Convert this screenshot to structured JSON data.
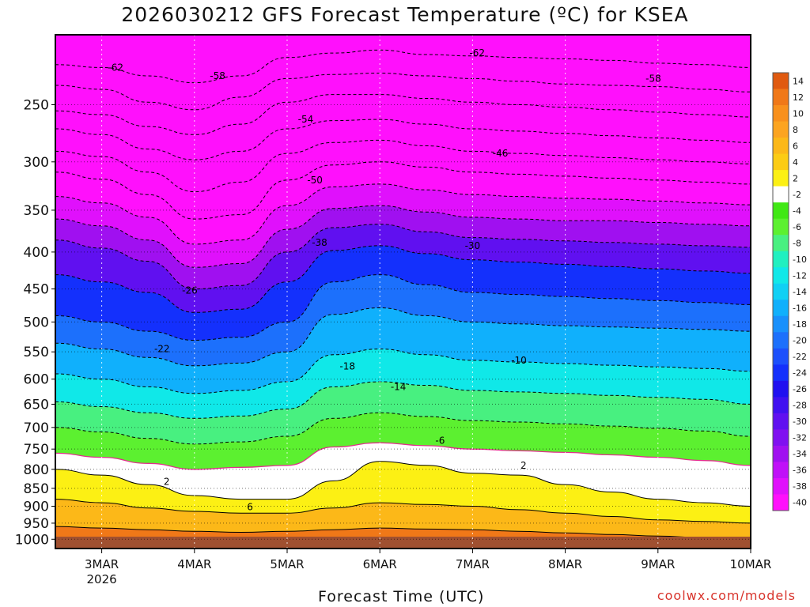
{
  "title": "2026030212 GFS Forecast Temperature (ºC) for KSEA",
  "credit": "coolwx.com/models",
  "chart_data": {
    "type": "heatmap",
    "title": "2026030212 GFS Forecast Temperature (ºC) for KSEA",
    "xlabel": "Forecast Time (UTC)",
    "ylabel": "",
    "y_scale": "log",
    "y_reversed": true,
    "y_range": [
      200,
      1030
    ],
    "y_ticks": [
      250,
      300,
      350,
      400,
      450,
      500,
      550,
      600,
      650,
      700,
      750,
      800,
      850,
      900,
      950,
      1000
    ],
    "x_ticks": [
      {
        "label": "3MAR",
        "sub": "2026"
      },
      {
        "label": "4MAR",
        "sub": ""
      },
      {
        "label": "5MAR",
        "sub": ""
      },
      {
        "label": "6MAR",
        "sub": ""
      },
      {
        "label": "7MAR",
        "sub": ""
      },
      {
        "label": "8MAR",
        "sub": ""
      },
      {
        "label": "9MAR",
        "sub": ""
      },
      {
        "label": "10MAR",
        "sub": ""
      }
    ],
    "x_range_days": [
      2.5,
      10.0
    ],
    "grid": true,
    "legend": "right colorbar",
    "colorbar": {
      "labels": [
        "14",
        "12",
        "10",
        "8",
        "6",
        "4",
        "2",
        "-2",
        "-4",
        "-6",
        "-8",
        "-10",
        "-12",
        "-14",
        "-16",
        "-18",
        "-20",
        "-22",
        "-24",
        "-26",
        "-28",
        "-30",
        "-32",
        "-34",
        "-36",
        "-38",
        "-40"
      ],
      "colors": [
        "#e05a10",
        "#f07818",
        "#f8901c",
        "#fca420",
        "#fcb818",
        "#fccc14",
        "#fcf014",
        "#ffffff",
        "#40e814",
        "#5cf030",
        "#48f080",
        "#20f0c0",
        "#10e8e8",
        "#10d0f4",
        "#10b0fc",
        "#1890fc",
        "#1c70fc",
        "#1c50fc",
        "#1430fc",
        "#2010f0",
        "#4010f0",
        "#6010f0",
        "#8010f0",
        "#a010f0",
        "#c010f8",
        "#e010fc",
        "#ff10fc"
      ]
    },
    "layers": [
      {
        "level": -62,
        "pressure": [
          220,
          222,
          228,
          233,
          228,
          215,
          212,
          210,
          213,
          214,
          215,
          216,
          217,
          219,
          220,
          222
        ]
      },
      {
        "level": -58,
        "pressure": [
          235,
          238,
          248,
          254,
          244,
          230,
          227,
          226,
          228,
          230,
          232,
          234,
          235,
          236,
          238,
          240
        ]
      },
      {
        "level": -54,
        "pressure": [
          255,
          258,
          268,
          275,
          266,
          248,
          242,
          242,
          245,
          248,
          250,
          252,
          254,
          256,
          258,
          260
        ]
      },
      {
        "level": -50,
        "pressure": [
          270,
          275,
          288,
          298,
          290,
          270,
          263,
          262,
          266,
          270,
          272,
          274,
          276,
          278,
          280,
          282
        ]
      },
      {
        "level": -46,
        "pressure": [
          290,
          295,
          310,
          330,
          320,
          292,
          282,
          280,
          285,
          290,
          292,
          294,
          296,
          298,
          300,
          302
        ]
      },
      {
        "level": -42,
        "pressure": [
          310,
          317,
          333,
          360,
          355,
          318,
          303,
          300,
          305,
          310,
          312,
          314,
          316,
          318,
          320,
          322
        ]
      },
      {
        "level": -38,
        "pressure": [
          335,
          342,
          358,
          390,
          385,
          345,
          325,
          322,
          328,
          333,
          335,
          337,
          338,
          340,
          342,
          344
        ]
      },
      {
        "level": -34,
        "pressure": [
          360,
          368,
          385,
          420,
          415,
          372,
          348,
          345,
          352,
          358,
          360,
          362,
          362,
          364,
          366,
          368
        ]
      },
      {
        "level": -30,
        "pressure": [
          385,
          395,
          412,
          450,
          445,
          400,
          370,
          366,
          375,
          382,
          384,
          386,
          388,
          390,
          392,
          394
        ]
      },
      {
        "level": -26,
        "pressure": [
          430,
          440,
          455,
          485,
          480,
          440,
          398,
          392,
          402,
          410,
          413,
          416,
          419,
          422,
          425,
          428
        ]
      },
      {
        "level": -22,
        "pressure": [
          490,
          500,
          515,
          530,
          525,
          500,
          440,
          430,
          444,
          455,
          458,
          461,
          464,
          467,
          470,
          473
        ]
      },
      {
        "level": -18,
        "pressure": [
          535,
          545,
          560,
          575,
          570,
          550,
          488,
          478,
          490,
          500,
          503,
          506,
          508,
          510,
          512,
          515
        ]
      },
      {
        "level": -14,
        "pressure": [
          590,
          600,
          615,
          628,
          622,
          605,
          555,
          545,
          555,
          565,
          568,
          571,
          574,
          577,
          580,
          585
        ]
      },
      {
        "level": -10,
        "pressure": [
          645,
          655,
          668,
          680,
          675,
          660,
          615,
          605,
          612,
          622,
          625,
          628,
          632,
          636,
          640,
          650
        ]
      },
      {
        "level": -6,
        "pressure": [
          700,
          710,
          725,
          738,
          733,
          720,
          680,
          668,
          676,
          685,
          688,
          692,
          697,
          702,
          708,
          720
        ]
      },
      {
        "level": -2,
        "pressure": [
          760,
          770,
          785,
          800,
          795,
          790,
          745,
          735,
          742,
          750,
          754,
          758,
          764,
          770,
          778,
          790
        ]
      },
      {
        "level": 2,
        "pressure": [
          800,
          815,
          840,
          870,
          880,
          880,
          830,
          780,
          790,
          810,
          815,
          840,
          860,
          880,
          890,
          900
        ]
      },
      {
        "level": 6,
        "pressure": [
          880,
          890,
          905,
          915,
          920,
          920,
          905,
          890,
          895,
          900,
          910,
          920,
          930,
          940,
          945,
          950
        ]
      },
      {
        "level": 10,
        "pressure": [
          960,
          965,
          970,
          975,
          978,
          975,
          970,
          965,
          968,
          970,
          975,
          980,
          985,
          990,
          995,
          1000
        ]
      }
    ],
    "annotations": [
      {
        "text": "-62",
        "x_day": 3.15,
        "p": 222
      },
      {
        "text": "-58",
        "x_day": 4.25,
        "p": 228
      },
      {
        "text": "-62",
        "x_day": 7.05,
        "p": 212
      },
      {
        "text": "-58",
        "x_day": 8.95,
        "p": 230
      },
      {
        "text": "-54",
        "x_day": 5.2,
        "p": 262
      },
      {
        "text": "-50",
        "x_day": 5.3,
        "p": 318
      },
      {
        "text": "-46",
        "x_day": 7.3,
        "p": 292
      },
      {
        "text": "-38",
        "x_day": 5.35,
        "p": 388
      },
      {
        "text": "-30",
        "x_day": 7.0,
        "p": 392
      },
      {
        "text": "-26",
        "x_day": 3.95,
        "p": 452
      },
      {
        "text": "-22",
        "x_day": 3.65,
        "p": 545
      },
      {
        "text": "-18",
        "x_day": 5.65,
        "p": 576
      },
      {
        "text": "-14",
        "x_day": 6.2,
        "p": 615
      },
      {
        "text": "-10",
        "x_day": 7.5,
        "p": 565
      },
      {
        "text": "-6",
        "x_day": 6.65,
        "p": 730
      },
      {
        "text": "2",
        "x_day": 3.7,
        "p": 832
      },
      {
        "text": "6",
        "x_day": 4.6,
        "p": 902
      },
      {
        "text": "2",
        "x_day": 7.55,
        "p": 790
      }
    ]
  }
}
